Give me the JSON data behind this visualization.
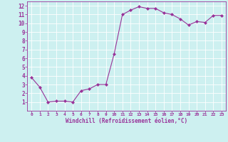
{
  "x": [
    0,
    1,
    2,
    3,
    4,
    5,
    6,
    7,
    8,
    9,
    10,
    11,
    12,
    13,
    14,
    15,
    16,
    17,
    18,
    19,
    20,
    21,
    22,
    23
  ],
  "y": [
    3.8,
    2.7,
    1.0,
    1.1,
    1.1,
    1.0,
    2.3,
    2.5,
    3.0,
    3.0,
    6.5,
    11.0,
    11.5,
    11.9,
    11.7,
    11.7,
    11.2,
    11.0,
    10.5,
    9.8,
    10.2,
    10.1,
    10.9,
    10.9
  ],
  "line_color": "#993399",
  "marker": "D",
  "marker_size": 2,
  "bg_color": "#cdf0f0",
  "grid_color": "#ffffff",
  "xlabel": "Windchill (Refroidissement éolien,°C)",
  "xlabel_color": "#993399",
  "tick_color": "#993399",
  "xlim": [
    -0.5,
    23.5
  ],
  "ylim": [
    0.0,
    12.5
  ],
  "yticks": [
    1,
    2,
    3,
    4,
    5,
    6,
    7,
    8,
    9,
    10,
    11,
    12
  ],
  "xticks": [
    0,
    1,
    2,
    3,
    4,
    5,
    6,
    7,
    8,
    9,
    10,
    11,
    12,
    13,
    14,
    15,
    16,
    17,
    18,
    19,
    20,
    21,
    22,
    23
  ],
  "figsize": [
    3.2,
    2.0
  ],
  "dpi": 100
}
